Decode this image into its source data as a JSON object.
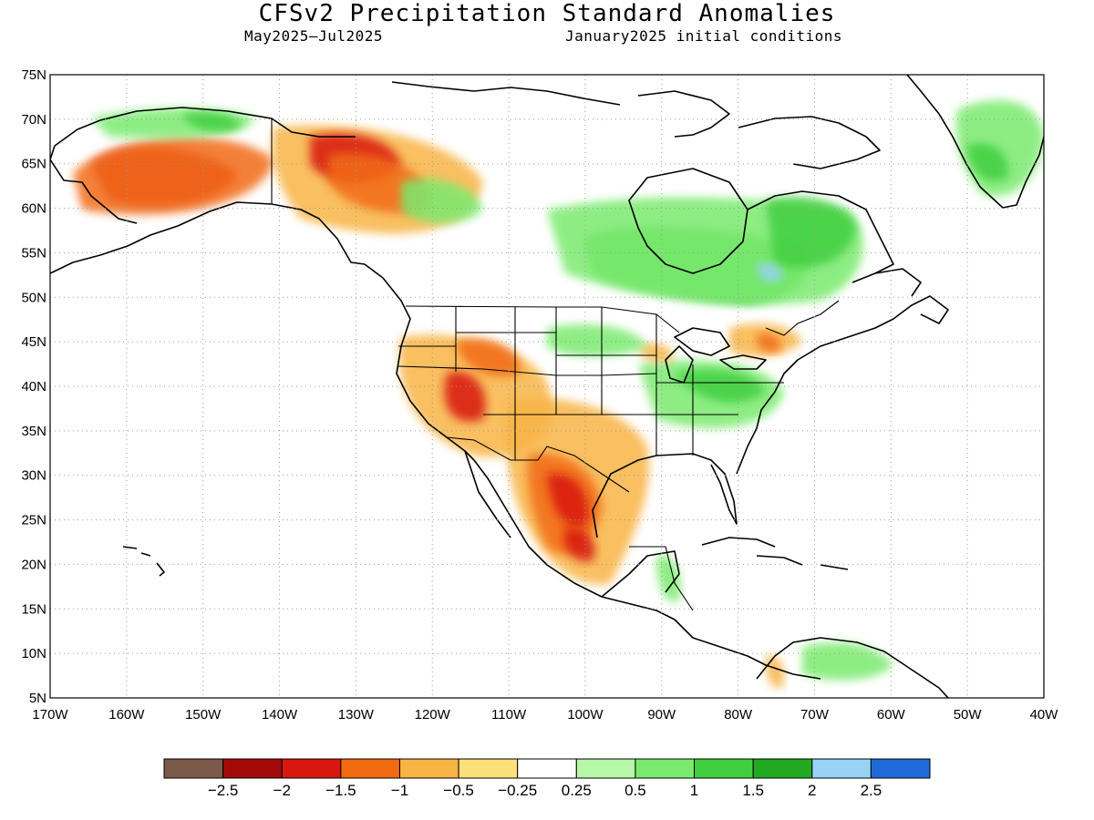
{
  "header": {
    "title": "CFSv2 Precipitation Standard Anomalies",
    "valid_period": "May2025–Jul2025",
    "init": "January2025 initial conditions"
  },
  "axes": {
    "lat_labels": [
      "75N",
      "70N",
      "65N",
      "60N",
      "55N",
      "50N",
      "45N",
      "40N",
      "35N",
      "30N",
      "25N",
      "20N",
      "15N",
      "10N",
      "5N"
    ],
    "lat_values": [
      75,
      70,
      65,
      60,
      55,
      50,
      45,
      40,
      35,
      30,
      25,
      20,
      15,
      10,
      5
    ],
    "lon_labels": [
      "170W",
      "160W",
      "150W",
      "140W",
      "130W",
      "120W",
      "110W",
      "100W",
      "90W",
      "80W",
      "70W",
      "60W",
      "50W",
      "40W"
    ],
    "lon_values": [
      -170,
      -160,
      -150,
      -140,
      -130,
      -120,
      -110,
      -100,
      -90,
      -80,
      -70,
      -60,
      -50,
      -40
    ],
    "lon_range": [
      -170,
      -40
    ],
    "lat_range": [
      5,
      75
    ],
    "grid": "dotted"
  },
  "colorbar": {
    "colors": [
      "#7b5a4a",
      "#a50a0a",
      "#d8180f",
      "#f26a12",
      "#f8b444",
      "#fbe07a",
      "#ffffff",
      "#b7f7a8",
      "#7aea6e",
      "#3fcf3f",
      "#22a922",
      "#98d2f7",
      "#1f6ad8"
    ],
    "labels": [
      "−2.5",
      "−2",
      "−1.5",
      "−1",
      "−0.5",
      "−0.25",
      "0.25",
      "0.5",
      "1",
      "1.5",
      "2",
      "2.5"
    ]
  },
  "legend_levels": [
    -2.5,
    -2,
    -1.5,
    -1,
    -0.5,
    -0.25,
    0.25,
    0.5,
    1,
    1.5,
    2,
    2.5
  ]
}
